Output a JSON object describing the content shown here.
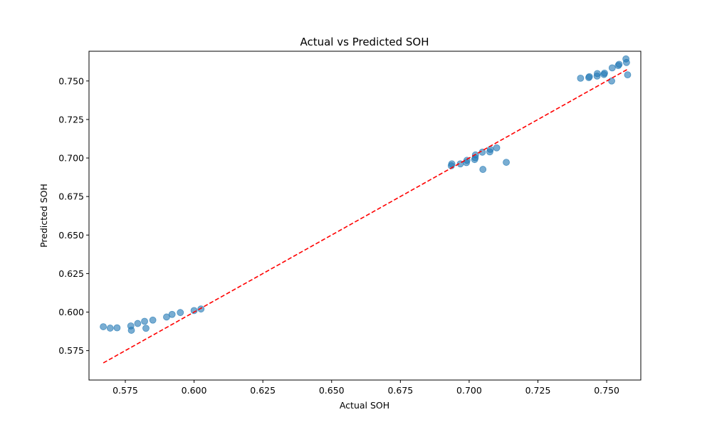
{
  "chart_data": {
    "type": "scatter",
    "title": "Actual vs Predicted SOH",
    "xlabel": "Actual SOH",
    "ylabel": "Predicted SOH",
    "xlim": [
      0.5618,
      0.7624
    ],
    "ylim": [
      0.5559,
      0.7693
    ],
    "xticks": [
      0.575,
      0.6,
      0.625,
      0.65,
      0.675,
      0.7,
      0.725,
      0.75
    ],
    "xtick_labels": [
      "0.575",
      "0.600",
      "0.625",
      "0.650",
      "0.675",
      "0.700",
      "0.725",
      "0.750"
    ],
    "yticks": [
      0.575,
      0.6,
      0.625,
      0.65,
      0.675,
      0.7,
      0.725,
      0.75
    ],
    "ytick_labels": [
      "0.575",
      "0.600",
      "0.625",
      "0.650",
      "0.675",
      "0.700",
      "0.725",
      "0.750"
    ],
    "grid": false,
    "series": [
      {
        "kind": "scatter",
        "color": "#1f77b4",
        "opacity": 0.6,
        "points": [
          [
            0.567,
            0.5905
          ],
          [
            0.5695,
            0.5896
          ],
          [
            0.572,
            0.5898
          ],
          [
            0.577,
            0.591
          ],
          [
            0.5772,
            0.5882
          ],
          [
            0.5795,
            0.5926
          ],
          [
            0.582,
            0.594
          ],
          [
            0.5825,
            0.5895
          ],
          [
            0.585,
            0.5948
          ],
          [
            0.59,
            0.5968
          ],
          [
            0.592,
            0.5985
          ],
          [
            0.595,
            0.5997
          ],
          [
            0.6,
            0.601
          ],
          [
            0.6025,
            0.602
          ],
          [
            0.6935,
            0.695
          ],
          [
            0.6937,
            0.6962
          ],
          [
            0.6968,
            0.6962
          ],
          [
            0.699,
            0.697
          ],
          [
            0.6992,
            0.6985
          ],
          [
            0.702,
            0.699
          ],
          [
            0.7022,
            0.7002
          ],
          [
            0.7023,
            0.702
          ],
          [
            0.7048,
            0.7038
          ],
          [
            0.705,
            0.6926
          ],
          [
            0.7075,
            0.704
          ],
          [
            0.7077,
            0.7056
          ],
          [
            0.71,
            0.7066
          ],
          [
            0.7135,
            0.6972
          ],
          [
            0.7405,
            0.7518
          ],
          [
            0.7435,
            0.7522
          ],
          [
            0.7437,
            0.7528
          ],
          [
            0.7465,
            0.7532
          ],
          [
            0.7466,
            0.7548
          ],
          [
            0.749,
            0.7542
          ],
          [
            0.7492,
            0.7551
          ],
          [
            0.7518,
            0.75
          ],
          [
            0.752,
            0.7585
          ],
          [
            0.7542,
            0.76
          ],
          [
            0.7545,
            0.7608
          ],
          [
            0.757,
            0.7643
          ],
          [
            0.7572,
            0.762
          ],
          [
            0.7576,
            0.754
          ]
        ]
      },
      {
        "kind": "line",
        "style": "dashed",
        "color": "#ff0000",
        "points": [
          [
            0.567,
            0.567
          ],
          [
            0.7576,
            0.7576
          ]
        ]
      }
    ]
  }
}
